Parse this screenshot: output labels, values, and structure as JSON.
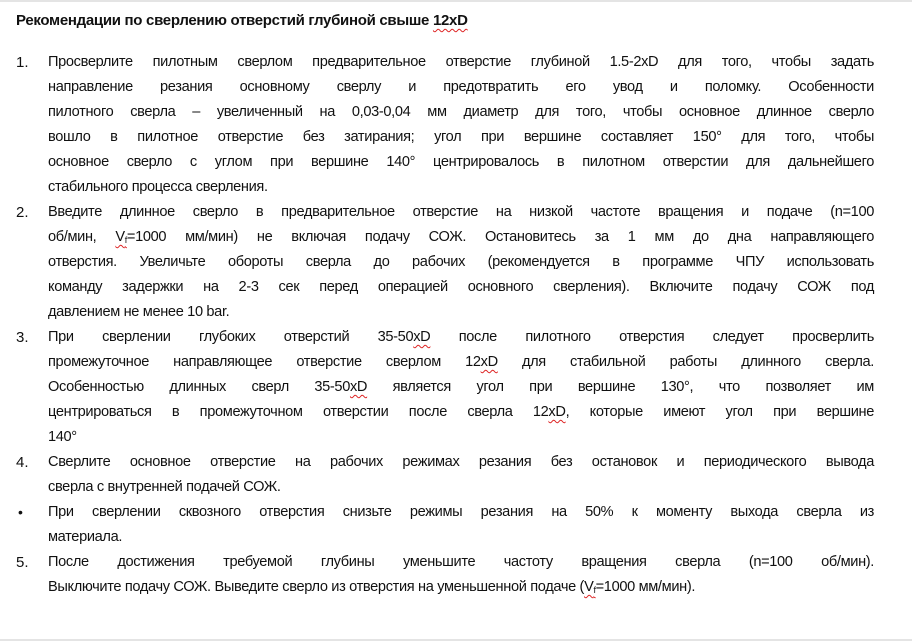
{
  "title": {
    "text": "Рекомендации по сверлению отверстий глубиной свыше ",
    "marked": "12xD"
  },
  "items": [
    {
      "marker": "1.",
      "lines": [
        "Просверлите пилотным сверлом предварительное отверстие глубиной 1.5-2xD для того, чтобы задать",
        "направление резания основному сверлу и предотвратить его увод и поломку. Особенности",
        "пилотного сверла – увеличенный на 0,03-0,04 мм диаметр для того, чтобы основное длинное сверло",
        "вошло в пилотное отверстие без затирания; угол при вершине составляет 150° для того, чтобы",
        "основное сверло с углом при вершине 140° центрировалось в пилотном отверстии для дальнейшего",
        "стабильного процесса сверления."
      ]
    },
    {
      "marker": "2.",
      "line1": "Введите длинное сверло в предварительное отверстие на низкой частоте вращения и подаче (n=100",
      "line2_pre": "об/мин, ",
      "line2_v": "V",
      "line2_sub": "f",
      "line2_post": "=1000 мм/мин) не включая подачу СОЖ. Остановитесь за 1 мм до дна направляющего",
      "lines": [
        "отверстия. Увеличьте обороты сверла до рабочих (рекомендуется в программе ЧПУ использовать",
        "команду задержки на 2-3 сек перед операцией основного сверления). Включите подачу СОЖ под",
        "давлением не менее 10 bar."
      ]
    },
    {
      "marker": "3.",
      "l1a": "При сверлении глубоких отверстий 35-50",
      "l1m": "xD",
      "l1b": " после пилотного отверстия следует просверлить",
      "l2a": "промежуточное направляющее отверстие сверлом 12",
      "l2m": "xD",
      "l2b": " для стабильной работы длинного сверла.",
      "l3a": "Особенностью длинных сверл 35-50",
      "l3m": "xD",
      "l3b": " является угол при вершине 130°, что позволяет им",
      "l4a": "центрироваться в промежуточном отверстии после сверла 12",
      "l4m": "xD",
      "l4b": ", которые имеют угол при вершине",
      "l5": "140°"
    },
    {
      "marker": "4.",
      "lines": [
        "Сверлите основное отверстие на рабочих режимах резания без остановок и периодического вывода",
        "сверла с внутренней подачей СОЖ."
      ]
    },
    {
      "marker": "•",
      "lines": [
        "При сверлении сквозного отверстия снизьте режимы резания на 50% к моменту выхода сверла из",
        "материала."
      ]
    },
    {
      "marker": "5.",
      "line1": "После достижения требуемой глубины уменьшите частоту вращения сверла (n=100 об/мин).",
      "line2_pre": "Выключите подачу СОЖ. Выведите сверло из отверстия на уменьшенной подаче (",
      "line2_v": "V",
      "line2_sub": "f",
      "line2_post": "=1000 мм/мин)."
    }
  ]
}
